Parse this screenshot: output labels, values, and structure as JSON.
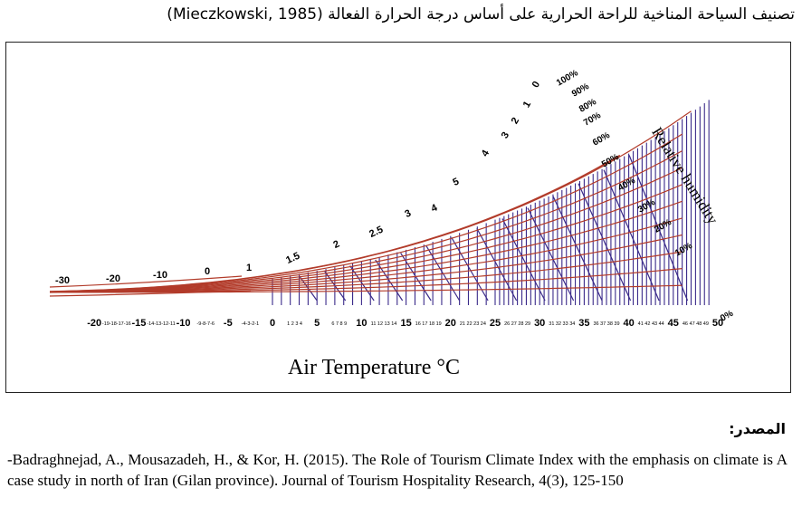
{
  "title": "تصنيف السياحة المناخية للراحة الحرارية على أساس درجة الحرارة الفعالة (Mieczkowski, 1985)",
  "diagram": {
    "x_label": "Air Temperature °C",
    "rh_label": "Relative humidity",
    "x_major_ticks": [
      "-20",
      "-15",
      "-10",
      "-5",
      "0",
      "5",
      "10",
      "15",
      "20",
      "25",
      "30",
      "35",
      "40",
      "45",
      "50"
    ],
    "x_minor_groups": [
      "-19-18-17-16",
      "-14-13-12-11",
      "-9-8-7-6",
      "-4-3-2-1",
      "1 2 3 4",
      "6 7 8 9",
      "11 12 13 14",
      "16 17 18 19",
      "21 22 23 24",
      "26 27 28 29",
      "31 32 33 34",
      "36 37 38 39",
      "41 42 43 44",
      "46 47 48 49"
    ],
    "curve_labels": [
      "-30",
      "-20",
      "-10",
      "0",
      "1",
      "1.5",
      "2",
      "2.5",
      "3",
      "4",
      "5",
      "4",
      "3",
      "2",
      "1",
      "0"
    ],
    "rh_levels": [
      "100%",
      "90%",
      "80%",
      "70%",
      "60%",
      "50%",
      "40%",
      "30%",
      "20%",
      "10%",
      "0%"
    ]
  },
  "source": {
    "label": "المصدر:",
    "citation": "-Badraghnejad, A., Mousazadeh, H., & Kor, H. (2015). The Role of Tourism Climate Index with the emphasis on climate is A case study in north of Iran (Gilan province). Journal of Tourism Hospitality Research, 4(3), 125-150"
  }
}
